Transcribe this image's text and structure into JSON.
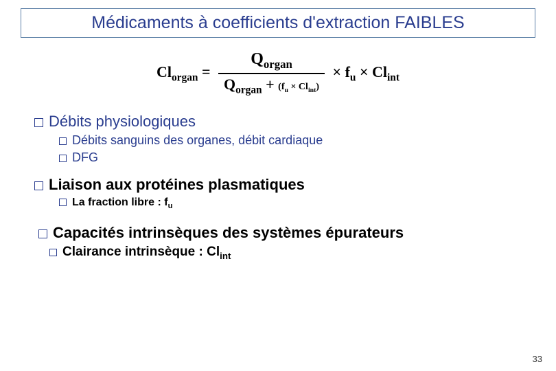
{
  "title": "Médicaments à coefficients d'extraction FAIBLES",
  "formula": {
    "lhs_base": "Cl",
    "lhs_sub": "organ",
    "num_base": "Q",
    "num_sub": "organ",
    "den_q_base": "Q",
    "den_q_sub": "organ",
    "den_plus": " + ",
    "den_paren": "(f",
    "den_paren_sub1": "u",
    "den_paren_mid": " × Cl",
    "den_paren_sub2": "int",
    "den_paren_end": ")",
    "rhs_f": "× f",
    "rhs_f_sub": "u",
    "rhs_cl": " × Cl",
    "rhs_cl_sub": "int"
  },
  "items": {
    "i1": "Débits physiologiques",
    "i1a": "Débits sanguins des organes, débit cardiaque",
    "i1b": "DFG",
    "i2": "Liaison aux protéines plasmatiques",
    "i2a_pre": "La fraction libre : f",
    "i2a_sub": "u",
    "i3": "Capacités intrinsèques des systèmes épurateurs",
    "i3a_pre": "Clairance intrinsèque  : Cl",
    "i3a_sub": "int"
  },
  "pageNumber": "33",
  "colors": {
    "blue": "#2a3d8f",
    "black": "#000000"
  }
}
